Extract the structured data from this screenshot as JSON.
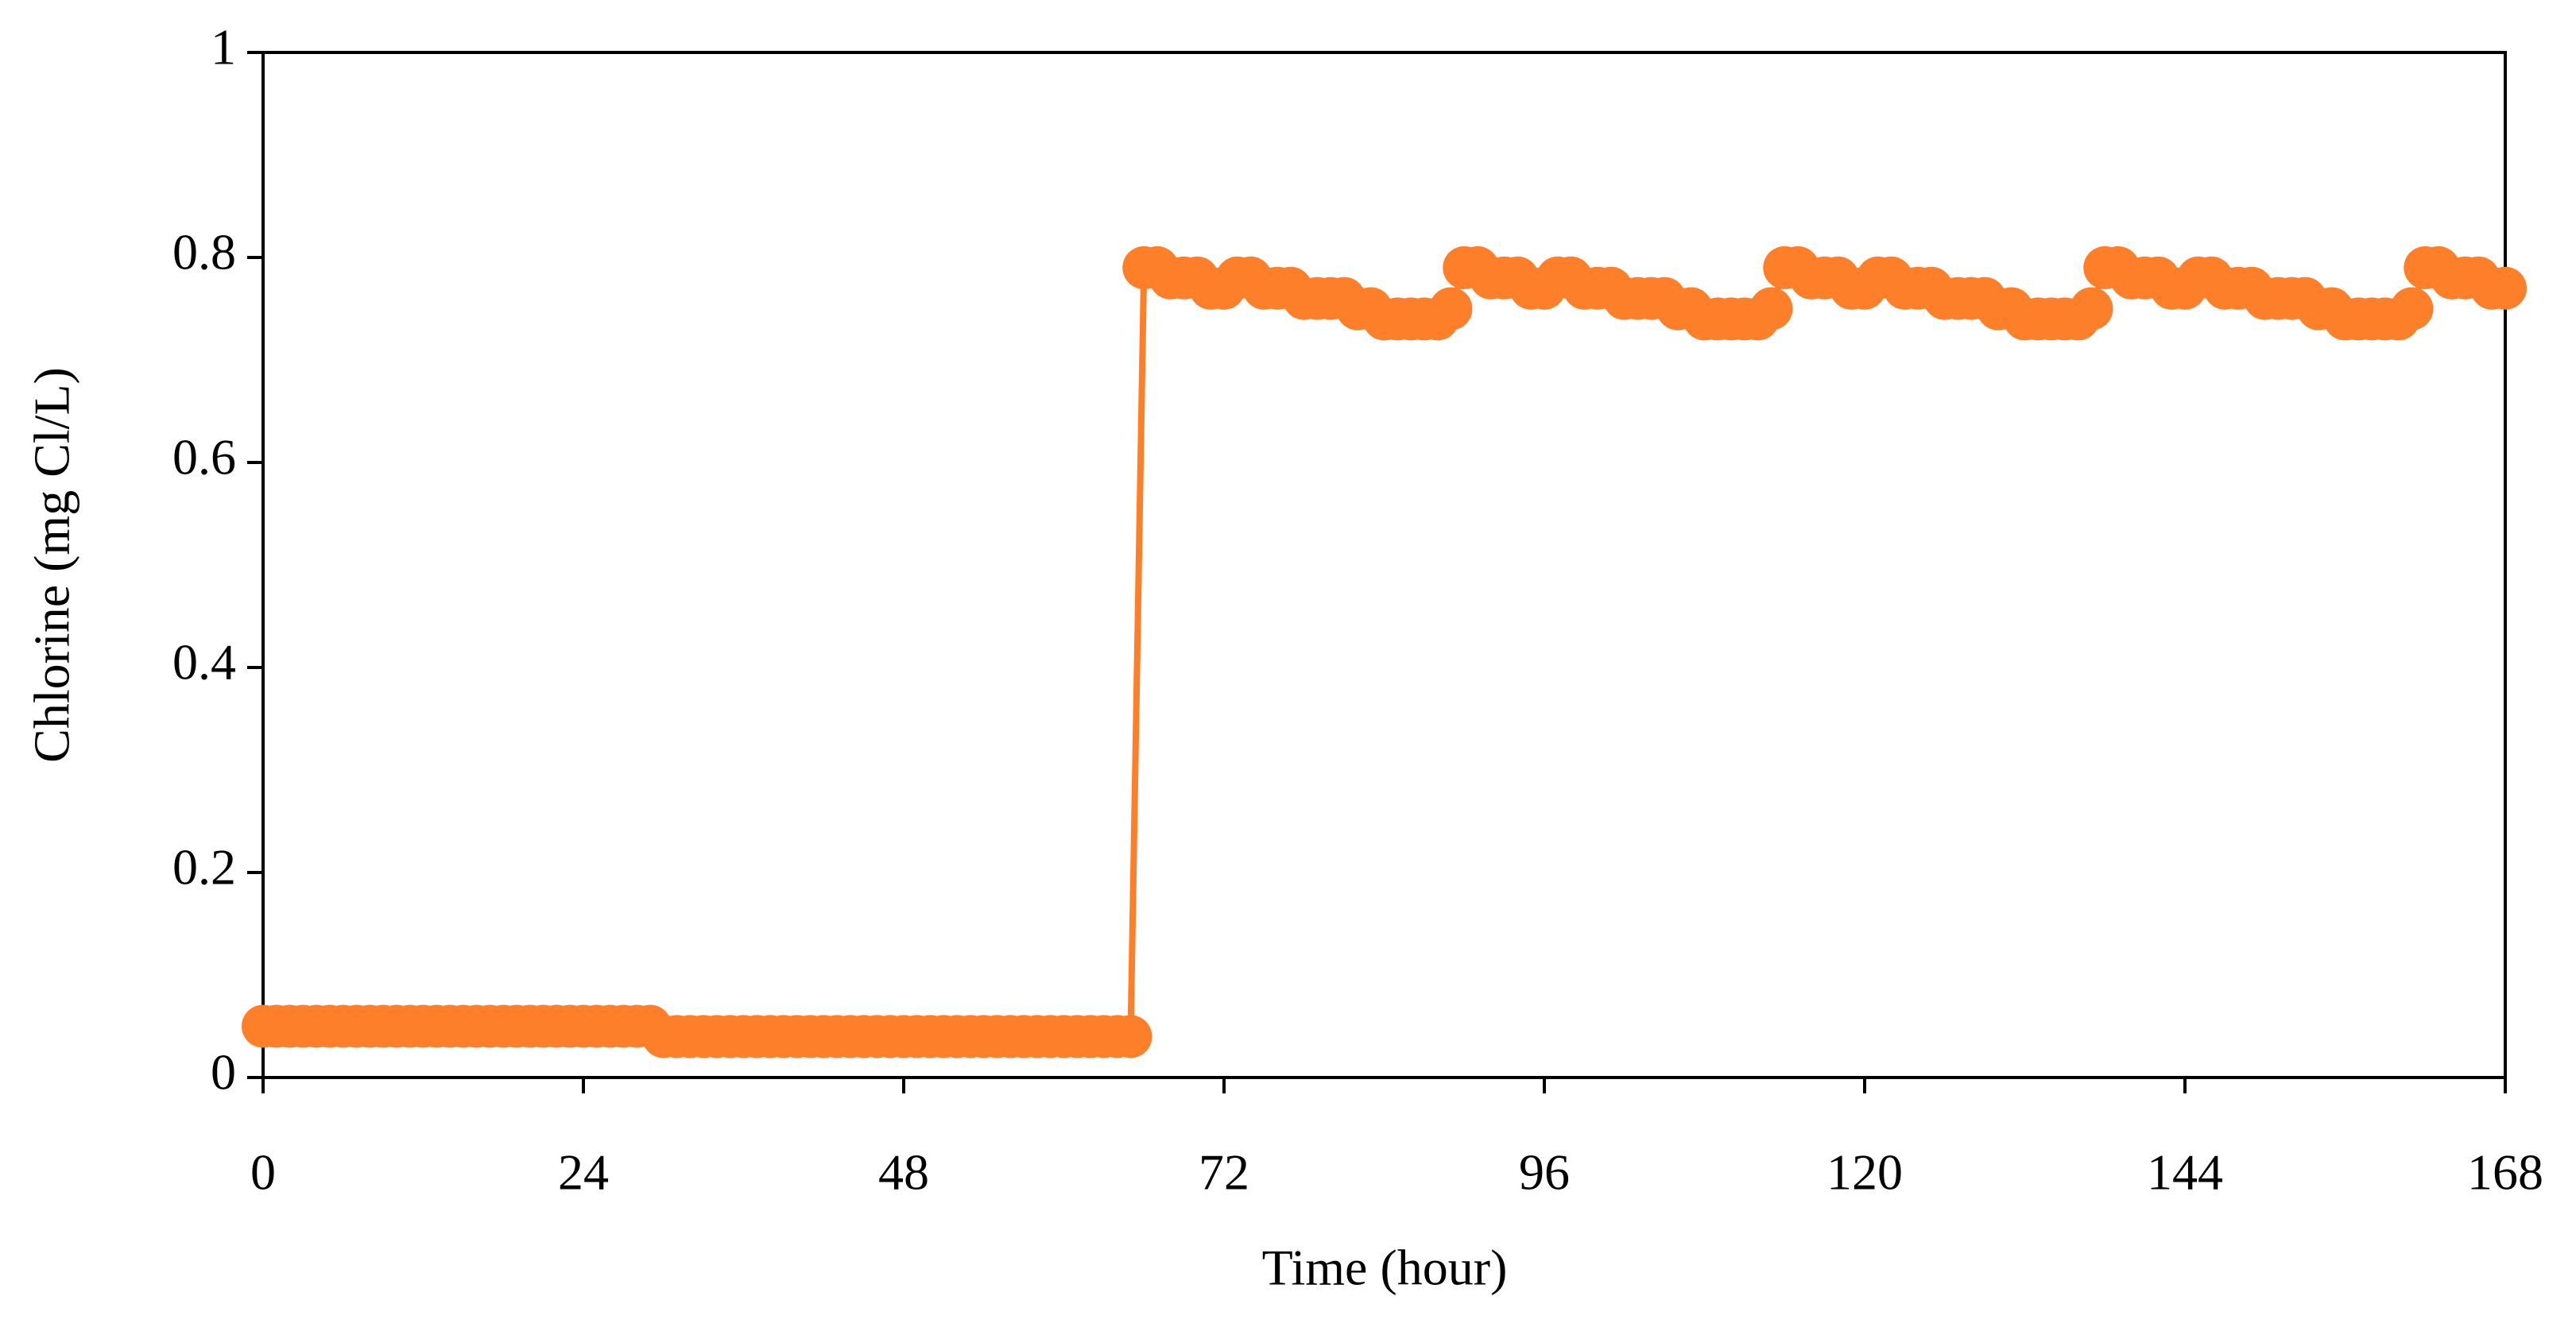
{
  "chart_data": {
    "type": "line",
    "x_label": "Time (hour)",
    "y_label": "Chlorine (mg Cl/L)",
    "color": "#fe7f2a",
    "xlim": [
      0,
      168
    ],
    "xticks": [
      0,
      24,
      48,
      72,
      96,
      120,
      144,
      168
    ],
    "ylim": [
      0,
      1
    ],
    "yticks": [
      0,
      0.2,
      0.4,
      0.6,
      0.8,
      1
    ],
    "x": [
      0,
      1,
      2,
      3,
      4,
      5,
      6,
      7,
      8,
      9,
      10,
      11,
      12,
      13,
      14,
      15,
      16,
      17,
      18,
      19,
      20,
      21,
      22,
      23,
      24,
      25,
      26,
      27,
      28,
      29,
      30,
      31,
      32,
      33,
      34,
      35,
      36,
      37,
      38,
      39,
      40,
      41,
      42,
      43,
      44,
      45,
      46,
      47,
      48,
      49,
      50,
      51,
      52,
      53,
      54,
      55,
      56,
      57,
      58,
      59,
      60,
      61,
      62,
      63,
      64,
      65,
      66,
      67,
      68,
      69,
      70,
      71,
      72,
      73,
      74,
      75,
      76,
      77,
      78,
      79,
      80,
      81,
      82,
      83,
      84,
      85,
      86,
      87,
      88,
      89,
      90,
      91,
      92,
      93,
      94,
      95,
      96,
      97,
      98,
      99,
      100,
      101,
      102,
      103,
      104,
      105,
      106,
      107,
      108,
      109,
      110,
      111,
      112,
      113,
      114,
      115,
      116,
      117,
      118,
      119,
      120,
      121,
      122,
      123,
      124,
      125,
      126,
      127,
      128,
      129,
      130,
      131,
      132,
      133,
      134,
      135,
      136,
      137,
      138,
      139,
      140,
      141,
      142,
      143,
      144,
      145,
      146,
      147,
      148,
      149,
      150,
      151,
      152,
      153,
      154,
      155,
      156,
      157,
      158,
      159,
      160,
      161,
      162,
      163,
      164,
      165,
      166,
      167,
      168
    ],
    "values": [
      0.05,
      0.05,
      0.05,
      0.05,
      0.05,
      0.05,
      0.05,
      0.05,
      0.05,
      0.05,
      0.05,
      0.05,
      0.05,
      0.05,
      0.05,
      0.05,
      0.05,
      0.05,
      0.05,
      0.05,
      0.05,
      0.05,
      0.05,
      0.05,
      0.05,
      0.05,
      0.05,
      0.05,
      0.05,
      0.05,
      0.04,
      0.04,
      0.04,
      0.04,
      0.04,
      0.04,
      0.04,
      0.04,
      0.04,
      0.04,
      0.04,
      0.04,
      0.04,
      0.04,
      0.04,
      0.04,
      0.04,
      0.04,
      0.04,
      0.04,
      0.04,
      0.04,
      0.04,
      0.04,
      0.04,
      0.04,
      0.04,
      0.04,
      0.04,
      0.04,
      0.04,
      0.04,
      0.04,
      0.04,
      0.04,
      0.04,
      0.79,
      0.79,
      0.78,
      0.78,
      0.78,
      0.77,
      0.77,
      0.78,
      0.78,
      0.77,
      0.77,
      0.77,
      0.76,
      0.76,
      0.76,
      0.76,
      0.75,
      0.75,
      0.74,
      0.74,
      0.74,
      0.74,
      0.74,
      0.75,
      0.79,
      0.79,
      0.78,
      0.78,
      0.78,
      0.77,
      0.77,
      0.78,
      0.78,
      0.77,
      0.77,
      0.77,
      0.76,
      0.76,
      0.76,
      0.76,
      0.75,
      0.75,
      0.74,
      0.74,
      0.74,
      0.74,
      0.74,
      0.75,
      0.79,
      0.79,
      0.78,
      0.78,
      0.78,
      0.77,
      0.77,
      0.78,
      0.78,
      0.77,
      0.77,
      0.77,
      0.76,
      0.76,
      0.76,
      0.76,
      0.75,
      0.75,
      0.74,
      0.74,
      0.74,
      0.74,
      0.74,
      0.75,
      0.79,
      0.79,
      0.78,
      0.78,
      0.78,
      0.77,
      0.77,
      0.78,
      0.78,
      0.77,
      0.77,
      0.77,
      0.76,
      0.76,
      0.76,
      0.76,
      0.75,
      0.75,
      0.74,
      0.74,
      0.74,
      0.74,
      0.74,
      0.75,
      0.79,
      0.79,
      0.78,
      0.78,
      0.78,
      0.77,
      0.77
    ]
  }
}
